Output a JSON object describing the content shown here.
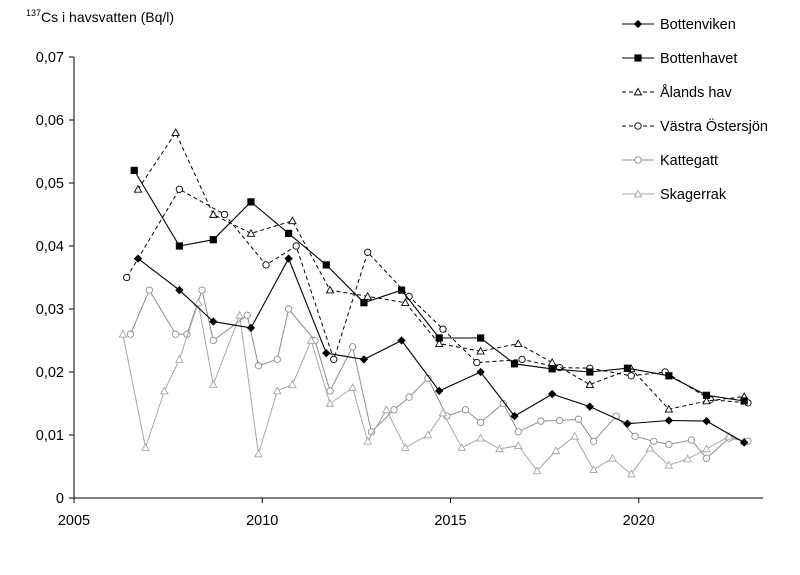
{
  "chart_data": {
    "type": "line",
    "title": "",
    "ylabel_super": "137",
    "ylabel_text": "Cs i havsvatten  (Bq/l)",
    "xlabel": "",
    "xlim": [
      2005,
      2023.3
    ],
    "ylim": [
      0,
      0.07
    ],
    "xticks": [
      2005,
      2010,
      2015,
      2020
    ],
    "yticks": [
      0,
      0.01,
      0.02,
      0.03,
      0.04,
      0.05,
      0.06,
      0.07
    ],
    "ytick_labels": [
      "0",
      "0,01",
      "0,02",
      "0,03",
      "0,04",
      "0,05",
      "0,06",
      "0,07"
    ],
    "legend_position": "top-right",
    "grid": false,
    "series": [
      {
        "name": "Bottenviken",
        "color": "#000000",
        "dash": "solid",
        "marker": "diamond-filled",
        "width": 1.1,
        "x": [
          2006.7,
          2007.8,
          2008.7,
          2009.7,
          2010.7,
          2011.7,
          2012.7,
          2013.7,
          2014.7,
          2015.8,
          2016.7,
          2017.7,
          2018.7,
          2019.7,
          2020.8,
          2021.8,
          2022.8
        ],
        "y": [
          0.038,
          0.033,
          0.028,
          0.027,
          0.038,
          0.023,
          0.022,
          0.025,
          0.017,
          0.02,
          0.013,
          0.0165,
          0.0145,
          0.0118,
          0.0123,
          0.0122,
          0.0088
        ]
      },
      {
        "name": "Bottenhavet",
        "color": "#000000",
        "dash": "solid",
        "marker": "square-filled",
        "width": 1.1,
        "x": [
          2006.6,
          2007.8,
          2008.7,
          2009.7,
          2010.7,
          2011.7,
          2012.7,
          2013.7,
          2014.7,
          2015.8,
          2016.7,
          2017.7,
          2018.7,
          2019.7,
          2020.8,
          2021.8,
          2022.8
        ],
        "y": [
          0.052,
          0.04,
          0.041,
          0.047,
          0.042,
          0.037,
          0.031,
          0.033,
          0.0254,
          0.0254,
          0.0213,
          0.0205,
          0.02,
          0.0206,
          0.0194,
          0.0163,
          0.0154
        ]
      },
      {
        "name": "Ålands hav",
        "color": "#000000",
        "dash": "4,3",
        "marker": "triangle-open",
        "width": 1.0,
        "x": [
          2006.7,
          2007.7,
          2008.7,
          2009.7,
          2010.8,
          2011.8,
          2012.8,
          2013.8,
          2014.7,
          2015.8,
          2016.8,
          2017.7,
          2018.7,
          2019.8,
          2020.8,
          2021.8,
          2022.8
        ],
        "y": [
          0.049,
          0.058,
          0.045,
          0.042,
          0.044,
          0.033,
          0.032,
          0.031,
          0.0245,
          0.0233,
          0.0245,
          0.0215,
          0.018,
          0.0205,
          0.0141,
          0.0154,
          0.0161
        ]
      },
      {
        "name": "Västra Östersjön",
        "color": "#000000",
        "dash": "4,3",
        "marker": "circle-open",
        "width": 1.0,
        "x": [
          2006.4,
          2007.8,
          2009.0,
          2010.1,
          2010.9,
          2011.9,
          2012.8,
          2013.9,
          2014.8,
          2015.7,
          2016.9,
          2017.9,
          2018.7,
          2019.8,
          2020.7,
          2021.9,
          2022.9
        ],
        "y": [
          0.035,
          0.049,
          0.045,
          0.037,
          0.04,
          0.022,
          0.039,
          0.032,
          0.0268,
          0.0215,
          0.022,
          0.0207,
          0.0206,
          0.0194,
          0.02,
          0.0156,
          0.0151
        ]
      },
      {
        "name": "Kattegatt",
        "color": "#8c8c8c",
        "dash": "solid",
        "marker": "circle-open",
        "width": 1.0,
        "x": [
          2006.5,
          2007.0,
          2007.7,
          2008.0,
          2008.4,
          2008.7,
          2009.6,
          2009.9,
          2010.4,
          2010.7,
          2011.4,
          2011.8,
          2012.4,
          2012.9,
          2013.5,
          2013.9,
          2014.4,
          2014.9,
          2015.4,
          2015.8,
          2016.4,
          2016.8,
          2017.4,
          2017.9,
          2018.4,
          2018.8,
          2019.4,
          2019.9,
          2020.4,
          2020.8,
          2021.4,
          2021.8,
          2022.4,
          2022.9
        ],
        "y": [
          0.026,
          0.033,
          0.026,
          0.026,
          0.033,
          0.025,
          0.029,
          0.021,
          0.022,
          0.03,
          0.025,
          0.017,
          0.024,
          0.0105,
          0.014,
          0.016,
          0.019,
          0.013,
          0.014,
          0.012,
          0.015,
          0.0105,
          0.0122,
          0.0123,
          0.0125,
          0.009,
          0.013,
          0.0098,
          0.009,
          0.0085,
          0.0092,
          0.0063,
          0.0095,
          0.009
        ]
      },
      {
        "name": "Skagerrak",
        "color": "#a6a6a6",
        "dash": "solid",
        "marker": "triangle-open",
        "width": 1.0,
        "x": [
          2006.3,
          2006.9,
          2007.4,
          2007.8,
          2008.3,
          2008.7,
          2009.4,
          2009.9,
          2010.4,
          2010.8,
          2011.3,
          2011.8,
          2012.4,
          2012.8,
          2013.3,
          2013.8,
          2014.4,
          2014.8,
          2015.3,
          2015.8,
          2016.3,
          2016.8,
          2017.3,
          2017.8,
          2018.3,
          2018.8,
          2019.3,
          2019.8,
          2020.3,
          2020.8,
          2021.3,
          2021.8,
          2022.4,
          2022.8
        ],
        "y": [
          0.026,
          0.008,
          0.017,
          0.022,
          0.031,
          0.018,
          0.029,
          0.007,
          0.017,
          0.018,
          0.025,
          0.015,
          0.0175,
          0.009,
          0.014,
          0.008,
          0.01,
          0.0135,
          0.008,
          0.0095,
          0.0078,
          0.0083,
          0.0043,
          0.0075,
          0.0098,
          0.0045,
          0.0063,
          0.0038,
          0.0079,
          0.0052,
          0.0062,
          0.0078,
          0.0098,
          0.009
        ]
      }
    ]
  }
}
